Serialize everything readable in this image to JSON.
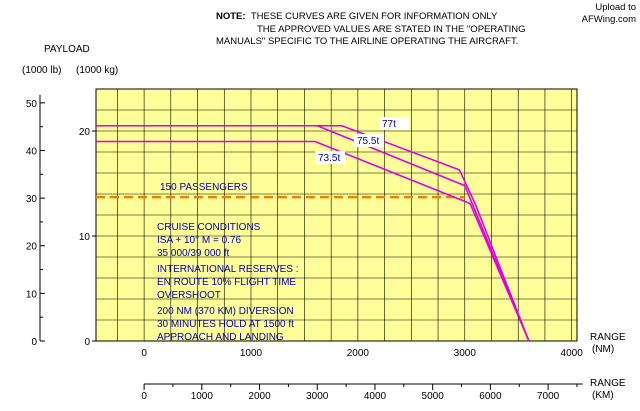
{
  "watermark": {
    "line1": "Upload to",
    "line2": "AFWing.com"
  },
  "note": {
    "prefix": "NOTE:",
    "line1": "THESE CURVES ARE GIVEN FOR INFORMATION ONLY",
    "line2": "THE APPROVED VALUES ARE STATED IN THE \"OPERATING",
    "line3": "MANUALS\" SPECIFIC TO THE AIRLINE OPERATING THE AIRCRAFT."
  },
  "conditions": {
    "cruise": [
      "CRUISE CONDITIONS",
      "ISA + 10° M = 0.76",
      "35 000/39 000 ft"
    ],
    "reserves": [
      "INTERNATIONAL RESERVES :",
      "EN ROUTE 10% FLIGHT TIME",
      "OVERSHOOT"
    ],
    "diversion": [
      "200 NM (370 KM) DIVERSION",
      "30 MINUTES HOLD AT 1500 ft",
      "APPROACH AND LANDING"
    ]
  },
  "chart_data": {
    "type": "line",
    "ylabel": "PAYLOAD",
    "y_units": [
      "(1000 lb)",
      "(1000 kg)"
    ],
    "y_lb_ticks": [
      "50",
      "40",
      "30",
      "20",
      "10",
      "0"
    ],
    "y_kg_ticks": [
      "20",
      "10",
      "0"
    ],
    "x_nm_label": [
      "RANGE",
      "(NM)"
    ],
    "x_km_label": [
      "RANGE",
      "(KM)"
    ],
    "x_nm_ticks": [
      "0",
      "1000",
      "2000",
      "3000",
      "4000"
    ],
    "x_km_ticks": [
      "0",
      "1000",
      "2000",
      "3000",
      "4000",
      "5000",
      "6000",
      "7000"
    ],
    "xlim_nm": [
      -450,
      4050
    ],
    "ylim_kg": [
      0,
      24
    ],
    "grid": true,
    "background": "#ffff99",
    "series": [
      {
        "name": "77t",
        "color": "#e000e0",
        "x_nm": [
          -450,
          1850,
          2950,
          3100,
          3600
        ],
        "y_kg": [
          20.5,
          20.5,
          16.3,
          13.0,
          0
        ]
      },
      {
        "name": "75.5t",
        "color": "#e000e0",
        "x_nm": [
          -450,
          1620,
          3000,
          3600
        ],
        "y_kg": [
          20.5,
          20.5,
          14.8,
          0
        ]
      },
      {
        "name": "73.5t",
        "color": "#e000e0",
        "x_nm": [
          -450,
          1600,
          3050,
          3600
        ],
        "y_kg": [
          19.0,
          19.0,
          13.1,
          0
        ]
      }
    ],
    "passengers_line": {
      "label": "150 PASSENGERS",
      "y_kg": 13.7,
      "x_end_nm": 3000,
      "color": "#f08000"
    }
  }
}
